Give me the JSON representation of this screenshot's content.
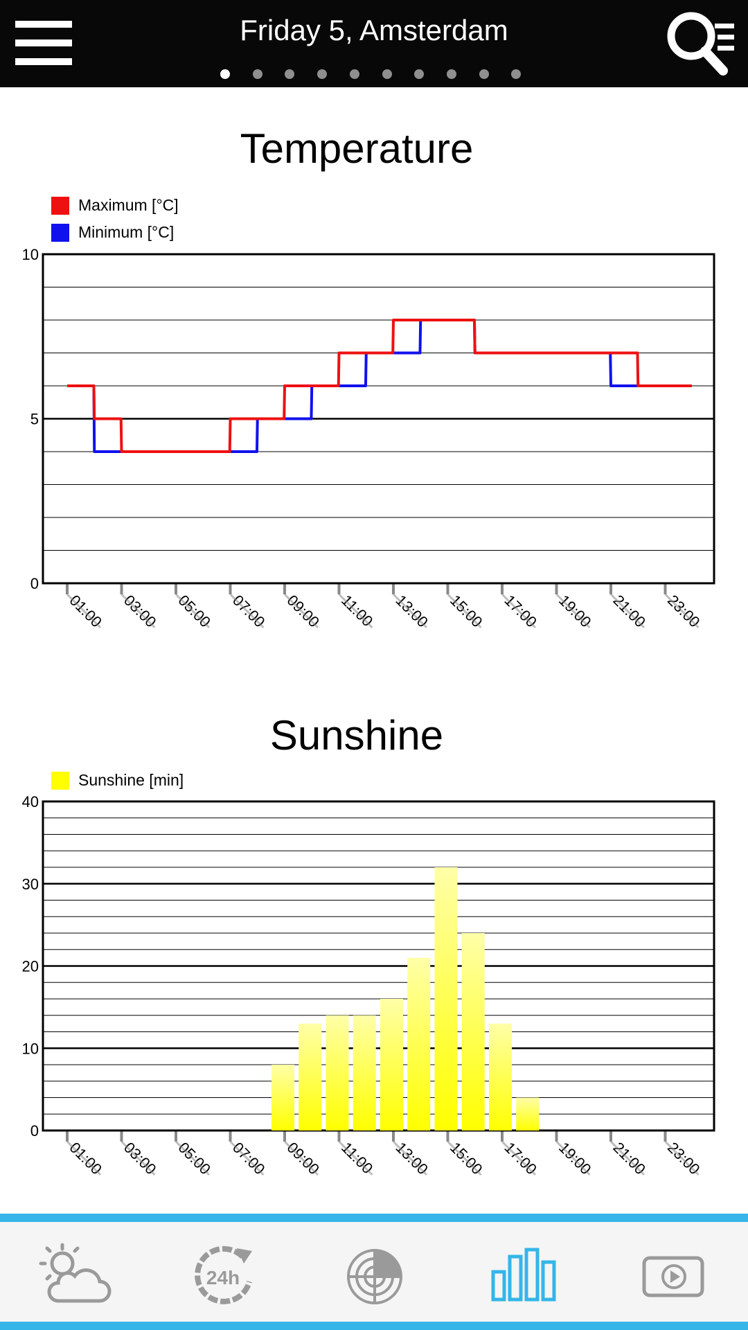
{
  "header": {
    "title": "Friday 5, Amsterdam",
    "page_count": 10,
    "active_page": 1
  },
  "temperature_chart": {
    "title": "Temperature",
    "legend": [
      {
        "label": "Maximum [°C]",
        "color": "#ee1111"
      },
      {
        "label": "Minimum [°C]",
        "color": "#1111ee"
      }
    ],
    "y_ticks": [
      "10",
      "5",
      "0"
    ],
    "x_ticks": [
      "01:00",
      "03:00",
      "05:00",
      "07:00",
      "09:00",
      "11:00",
      "13:00",
      "15:00",
      "17:00",
      "19:00",
      "21:00",
      "23:00"
    ]
  },
  "sunshine_chart": {
    "title": "Sunshine",
    "legend": [
      {
        "label": "Sunshine [min]",
        "color": "#ffff00"
      }
    ],
    "y_ticks": [
      "40",
      "30",
      "20",
      "10",
      "0"
    ],
    "x_ticks": [
      "01:00",
      "03:00",
      "05:00",
      "07:00",
      "09:00",
      "11:00",
      "13:00",
      "15:00",
      "17:00",
      "19:00",
      "21:00",
      "23:00"
    ]
  },
  "chart_data": [
    {
      "type": "line",
      "title": "Temperature",
      "x": [
        "01:00",
        "02:00",
        "03:00",
        "04:00",
        "05:00",
        "06:00",
        "07:00",
        "08:00",
        "09:00",
        "10:00",
        "11:00",
        "12:00",
        "13:00",
        "14:00",
        "15:00",
        "16:00",
        "17:00",
        "18:00",
        "19:00",
        "20:00",
        "21:00",
        "22:00",
        "23:00"
      ],
      "series": [
        {
          "name": "Maximum [°C]",
          "color": "#ee1111",
          "values": [
            6,
            5,
            4,
            4,
            4,
            4,
            5,
            5,
            6,
            6,
            7,
            7,
            8,
            8,
            8,
            7,
            7,
            7,
            7,
            7,
            7,
            6,
            6
          ]
        },
        {
          "name": "Minimum [°C]",
          "color": "#1111ee",
          "values": [
            6,
            4,
            4,
            4,
            4,
            4,
            4,
            5,
            5,
            6,
            6,
            7,
            7,
            8,
            8,
            7,
            7,
            7,
            7,
            7,
            6,
            6,
            6
          ]
        }
      ],
      "ylim": [
        0,
        10
      ],
      "line_style": "step",
      "grid": true,
      "legend_position": "top-left"
    },
    {
      "type": "bar",
      "title": "Sunshine",
      "categories": [
        "01:00",
        "02:00",
        "03:00",
        "04:00",
        "05:00",
        "06:00",
        "07:00",
        "08:00",
        "09:00",
        "10:00",
        "11:00",
        "12:00",
        "13:00",
        "14:00",
        "15:00",
        "16:00",
        "17:00",
        "18:00",
        "19:00",
        "20:00",
        "21:00",
        "22:00",
        "23:00",
        "24:00"
      ],
      "series": [
        {
          "name": "Sunshine [min]",
          "color": "#ffff00",
          "values": [
            0,
            0,
            0,
            0,
            0,
            0,
            0,
            0,
            8,
            13,
            14,
            14,
            16,
            21,
            32,
            24,
            13,
            4,
            0,
            0,
            0,
            0,
            0,
            0
          ]
        }
      ],
      "ylim": [
        0,
        40
      ],
      "grid": true,
      "legend_position": "top-left"
    }
  ],
  "bottom_nav": {
    "items": [
      {
        "icon": "weather-icon",
        "active": false
      },
      {
        "icon": "24h-icon",
        "active": false
      },
      {
        "icon": "radar-icon",
        "active": false
      },
      {
        "icon": "charts-icon",
        "active": true
      },
      {
        "icon": "video-icon",
        "active": false
      }
    ],
    "accent_color": "#35b5e8",
    "inactive_color": "#9a9a9a"
  }
}
